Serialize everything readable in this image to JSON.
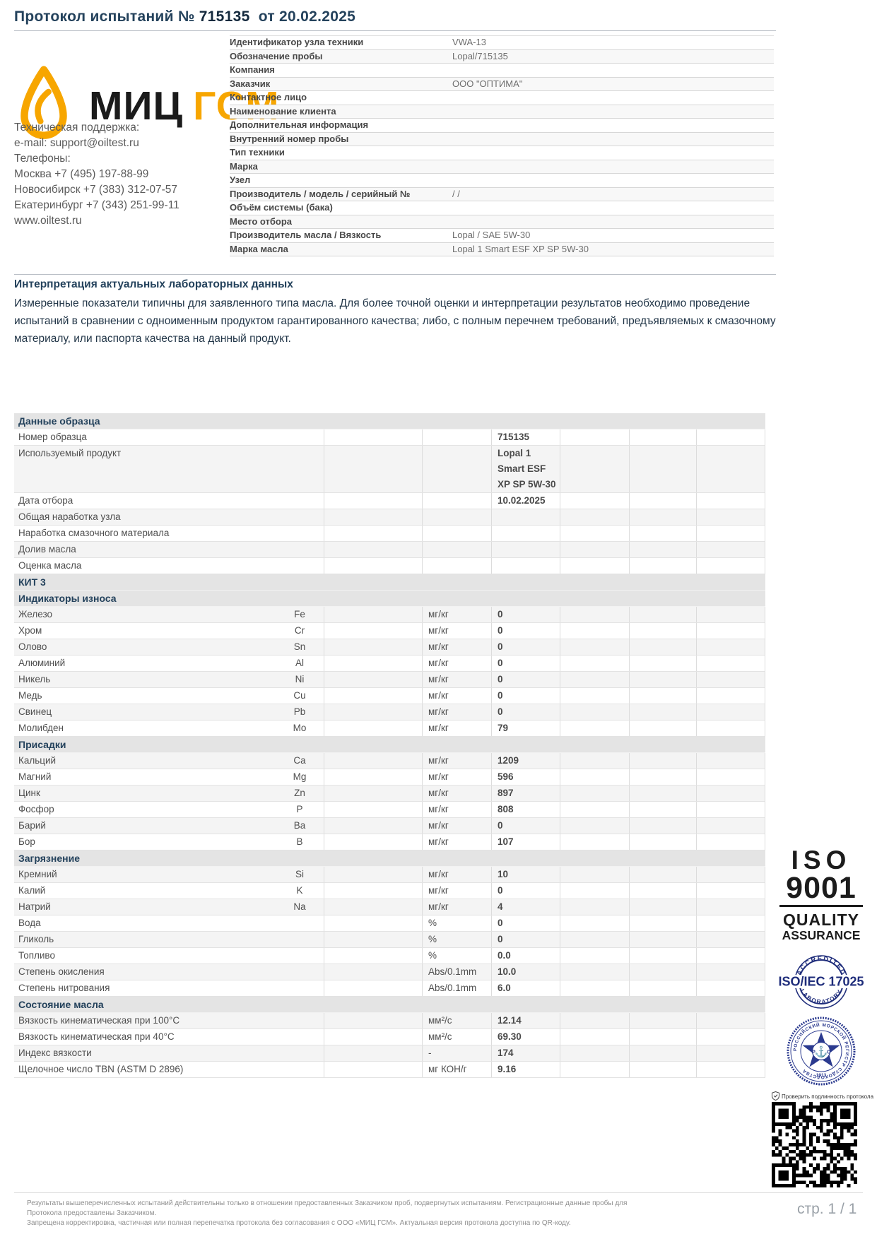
{
  "title": {
    "label": "Протокол испытаний №",
    "number": "715135",
    "date_text": "от 20.02.2025"
  },
  "logo": {
    "brand_left": "МИЦ",
    "brand_right": "ГСМ",
    "accent_color": "#f7a600"
  },
  "contacts": {
    "lines": [
      "Техническая поддержка:",
      "e-mail: support@oiltest.ru",
      "Телефоны:",
      "Москва +7 (495) 197-88-99",
      "Новосибирск +7 (383) 312-07-57",
      "Екатеринбург +7 (343) 251-99-11",
      "www.oiltest.ru"
    ]
  },
  "info_table": {
    "rows": [
      {
        "label": "Идентификатор узла техники",
        "value": "VWA-13"
      },
      {
        "label": "Обозначение пробы",
        "value": "Lopal/715135"
      },
      {
        "label": "Компания",
        "value": ""
      },
      {
        "label": "Заказчик",
        "value": "ООО \"ОПТИМА\""
      },
      {
        "label": "Контактное лицо",
        "value": ""
      },
      {
        "label": "Наименование клиента",
        "value": ""
      },
      {
        "label": "Дополнительная информация",
        "value": ""
      },
      {
        "label": "Внутренний номер пробы",
        "value": ""
      },
      {
        "label": "Тип техники",
        "value": ""
      },
      {
        "label": "Марка",
        "value": ""
      },
      {
        "label": "Узел",
        "value": ""
      },
      {
        "label": "Производитель / модель / серийный №",
        "value": "/ /"
      },
      {
        "label": "Объём системы (бака)",
        "value": ""
      },
      {
        "label": "Место отбора",
        "value": ""
      },
      {
        "label": "Производитель масла / Вязкость",
        "value": "Lopal / SAE 5W-30"
      },
      {
        "label": "Марка масла",
        "value": "Lopal 1 Smart ESF XP SP 5W-30"
      }
    ]
  },
  "interpretation": {
    "heading": "Интерпретация актуальных лабораторных данных",
    "text": "Измеренные показатели типичны для заявленного типа масла.  Для более точной оценки и интерпретации результатов необходимо проведение испытаний в сравнении с одноименным продуктом гарантированного качества; либо, с полным перечнем требований, предъявляемых к смазочному материалу, или паспорта качества на данный продукт."
  },
  "results_table": {
    "sections": [
      {
        "header": "Данные образца",
        "rows": [
          {
            "label": "Номер образца",
            "symbol": "",
            "unit": "",
            "value": "715135"
          },
          {
            "label": "Используемый продукт",
            "symbol": "",
            "unit": "",
            "value": "Lopal 1\nSmart ESF\nXP SP 5W-30"
          },
          {
            "label": "Дата отбора",
            "symbol": "",
            "unit": "",
            "value": "10.02.2025"
          },
          {
            "label": "Общая наработка узла",
            "symbol": "",
            "unit": "",
            "value": ""
          },
          {
            "label": "Наработка смазочного материала",
            "symbol": "",
            "unit": "",
            "value": ""
          },
          {
            "label": "Долив масла",
            "symbol": "",
            "unit": "",
            "value": ""
          },
          {
            "label": "Оценка масла",
            "symbol": "",
            "unit": "",
            "value": ""
          }
        ]
      },
      {
        "header": "КИТ 3",
        "rows": []
      },
      {
        "header": "Индикаторы износа",
        "rows": [
          {
            "label": "Железо",
            "symbol": "Fe",
            "unit": "мг/кг",
            "value": "0"
          },
          {
            "label": "Хром",
            "symbol": "Cr",
            "unit": "мг/кг",
            "value": "0"
          },
          {
            "label": "Олово",
            "symbol": "Sn",
            "unit": "мг/кг",
            "value": "0"
          },
          {
            "label": "Алюминий",
            "symbol": "Al",
            "unit": "мг/кг",
            "value": "0"
          },
          {
            "label": "Никель",
            "symbol": "Ni",
            "unit": "мг/кг",
            "value": "0"
          },
          {
            "label": "Медь",
            "symbol": "Cu",
            "unit": "мг/кг",
            "value": "0"
          },
          {
            "label": "Свинец",
            "symbol": "Pb",
            "unit": "мг/кг",
            "value": "0"
          },
          {
            "label": "Молибден",
            "symbol": "Mo",
            "unit": "мг/кг",
            "value": "79"
          }
        ]
      },
      {
        "header": "Присадки",
        "rows": [
          {
            "label": "Кальций",
            "symbol": "Ca",
            "unit": "мг/кг",
            "value": "1209"
          },
          {
            "label": "Магний",
            "symbol": "Mg",
            "unit": "мг/кг",
            "value": "596"
          },
          {
            "label": "Цинк",
            "symbol": "Zn",
            "unit": "мг/кг",
            "value": "897"
          },
          {
            "label": "Фосфор",
            "symbol": "P",
            "unit": "мг/кг",
            "value": "808"
          },
          {
            "label": "Барий",
            "symbol": "Ba",
            "unit": "мг/кг",
            "value": "0"
          },
          {
            "label": "Бор",
            "symbol": "B",
            "unit": "мг/кг",
            "value": "107"
          }
        ]
      },
      {
        "header": "Загрязнение",
        "rows": [
          {
            "label": "Кремний",
            "symbol": "Si",
            "unit": "мг/кг",
            "value": "10"
          },
          {
            "label": "Калий",
            "symbol": "K",
            "unit": "мг/кг",
            "value": "0"
          },
          {
            "label": "Натрий",
            "symbol": "Na",
            "unit": "мг/кг",
            "value": "4"
          },
          {
            "label": "Вода",
            "symbol": "",
            "unit": "%",
            "value": "0"
          },
          {
            "label": "Гликоль",
            "symbol": "",
            "unit": "%",
            "value": "0"
          },
          {
            "label": "Топливо",
            "symbol": "",
            "unit": "%",
            "value": "0.0"
          },
          {
            "label": "Степень окисления",
            "symbol": "",
            "unit": "Abs/0.1mm",
            "value": "10.0"
          },
          {
            "label": "Степень нитрования",
            "symbol": "",
            "unit": "Abs/0.1mm",
            "value": "6.0"
          }
        ]
      },
      {
        "header": "Состояние масла",
        "rows": [
          {
            "label": "Вязкость кинематическая при 100°С",
            "symbol": "",
            "unit": "мм²/с",
            "value": "12.14"
          },
          {
            "label": "Вязкость кинематическая при 40°С",
            "symbol": "",
            "unit": "мм²/с",
            "value": "69.30"
          },
          {
            "label": "Индекс вязкости",
            "symbol": "",
            "unit": "-",
            "value": "174"
          },
          {
            "label": "Щелочное число TBN (ASTM D 2896)",
            "symbol": "",
            "unit": "мг КОН/г",
            "value": "9.16"
          }
        ]
      }
    ]
  },
  "badges": {
    "iso9001": {
      "line1": "ISO",
      "line2": "9001",
      "line3": "QUALITY",
      "line4": "ASSURANCE",
      "color": "#1c1c1c"
    },
    "iso17025": {
      "top": "ACCREDITED",
      "middle": "ISO/IEC 17025",
      "bottom": "LABORATORY",
      "color": "#1f2d7b"
    },
    "register": {
      "around": "РОССИЙСКИЙ МОРСКОЙ РЕГИСТР СУДОХОДСТВА",
      "year": "1913",
      "letter_left": "Р",
      "letter_right": "С",
      "anchor_icon": "⚓",
      "color": "#2b3a8f"
    }
  },
  "qr": {
    "caption": "Проверить подлинность протокола"
  },
  "footer": {
    "line1": "Результаты вышеперечисленных испытаний действительны только в отношении предоставленных Заказчиком проб, подвергнутых испытаниям. Регистрационные данные пробы для Протокола предоставлены Заказчиком.",
    "line2": "Запрещена корректировка, частичная или полная перепечатка протокола без согласования с ООО «МИЦ ГСМ». Актуальная версия протокола доступна по QR-коду.",
    "page": "стр. 1 / 1"
  }
}
